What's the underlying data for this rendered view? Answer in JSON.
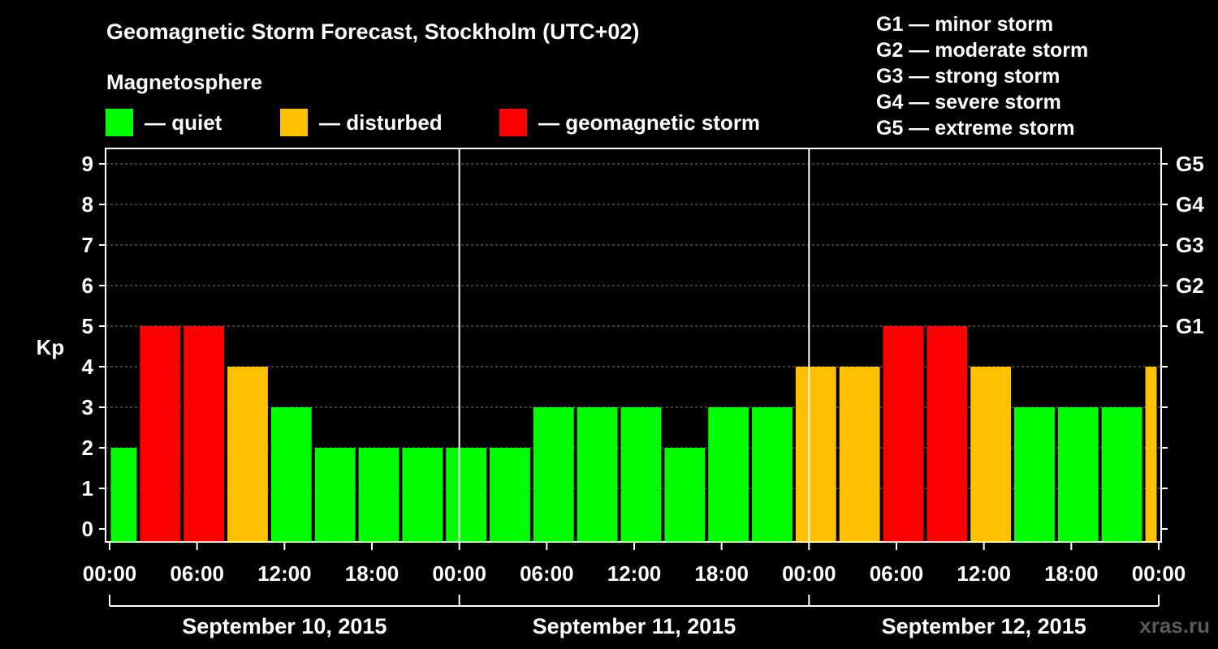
{
  "title": "Geomagnetic Storm Forecast, Stockholm (UTC+02)",
  "magnetosphere_label": "Magnetosphere",
  "legend": [
    {
      "label": "— quiet",
      "color": "#00ff00"
    },
    {
      "label": "— disturbed",
      "color": "#ffc000"
    },
    {
      "label": "— geomagnetic storm",
      "color": "#ff0000"
    }
  ],
  "g_scale": [
    "G1 — minor storm",
    "G2 — moderate storm",
    "G3 — strong storm",
    "G4 — severe storm",
    "G5 — extreme storm"
  ],
  "watermark": "xras.ru",
  "chart_data": {
    "type": "bar",
    "ylabel": "Kp",
    "ylim": [
      0,
      9
    ],
    "yticks": [
      0,
      1,
      2,
      3,
      4,
      5,
      6,
      7,
      8,
      9
    ],
    "y2_labels": [
      {
        "kp": 5,
        "label": "G1"
      },
      {
        "kp": 6,
        "label": "G2"
      },
      {
        "kp": 7,
        "label": "G3"
      },
      {
        "kp": 8,
        "label": "G4"
      },
      {
        "kp": 9,
        "label": "G5"
      }
    ],
    "x_range_hours": [
      0,
      72
    ],
    "x_ticks": [
      {
        "hour": 0,
        "label": "00:00"
      },
      {
        "hour": 6,
        "label": "06:00"
      },
      {
        "hour": 12,
        "label": "12:00"
      },
      {
        "hour": 18,
        "label": "18:00"
      },
      {
        "hour": 24,
        "label": "00:00"
      },
      {
        "hour": 30,
        "label": "06:00"
      },
      {
        "hour": 36,
        "label": "12:00"
      },
      {
        "hour": 42,
        "label": "18:00"
      },
      {
        "hour": 48,
        "label": "00:00"
      },
      {
        "hour": 54,
        "label": "06:00"
      },
      {
        "hour": 60,
        "label": "12:00"
      },
      {
        "hour": 66,
        "label": "18:00"
      },
      {
        "hour": 72,
        "label": "00:00"
      }
    ],
    "days": [
      {
        "label": "September 10, 2015",
        "start_hour": 0,
        "end_hour": 24
      },
      {
        "label": "September 11, 2015",
        "start_hour": 24,
        "end_hour": 48
      },
      {
        "label": "September 12, 2015",
        "start_hour": 48,
        "end_hour": 72
      }
    ],
    "colors": {
      "quiet": "#00ff00",
      "disturbed": "#ffc000",
      "storm": "#ff0000"
    },
    "bars": [
      {
        "start": 0,
        "end": 2,
        "kp": 2,
        "level": "quiet"
      },
      {
        "start": 2,
        "end": 5,
        "kp": 5,
        "level": "storm"
      },
      {
        "start": 5,
        "end": 8,
        "kp": 5,
        "level": "storm"
      },
      {
        "start": 8,
        "end": 11,
        "kp": 4,
        "level": "disturbed"
      },
      {
        "start": 11,
        "end": 14,
        "kp": 3,
        "level": "quiet"
      },
      {
        "start": 14,
        "end": 17,
        "kp": 2,
        "level": "quiet"
      },
      {
        "start": 17,
        "end": 20,
        "kp": 2,
        "level": "quiet"
      },
      {
        "start": 20,
        "end": 23,
        "kp": 2,
        "level": "quiet"
      },
      {
        "start": 23,
        "end": 26,
        "kp": 2,
        "level": "quiet"
      },
      {
        "start": 26,
        "end": 29,
        "kp": 2,
        "level": "quiet"
      },
      {
        "start": 29,
        "end": 32,
        "kp": 3,
        "level": "quiet"
      },
      {
        "start": 32,
        "end": 35,
        "kp": 3,
        "level": "quiet"
      },
      {
        "start": 35,
        "end": 38,
        "kp": 3,
        "level": "quiet"
      },
      {
        "start": 38,
        "end": 41,
        "kp": 2,
        "level": "quiet"
      },
      {
        "start": 41,
        "end": 44,
        "kp": 3,
        "level": "quiet"
      },
      {
        "start": 44,
        "end": 47,
        "kp": 3,
        "level": "quiet"
      },
      {
        "start": 47,
        "end": 50,
        "kp": 4,
        "level": "disturbed"
      },
      {
        "start": 50,
        "end": 53,
        "kp": 4,
        "level": "disturbed"
      },
      {
        "start": 53,
        "end": 56,
        "kp": 5,
        "level": "storm"
      },
      {
        "start": 56,
        "end": 59,
        "kp": 5,
        "level": "storm"
      },
      {
        "start": 59,
        "end": 62,
        "kp": 4,
        "level": "disturbed"
      },
      {
        "start": 62,
        "end": 65,
        "kp": 3,
        "level": "quiet"
      },
      {
        "start": 65,
        "end": 68,
        "kp": 3,
        "level": "quiet"
      },
      {
        "start": 68,
        "end": 71,
        "kp": 3,
        "level": "quiet"
      },
      {
        "start": 71,
        "end": 72,
        "kp": 4,
        "level": "disturbed"
      }
    ]
  }
}
